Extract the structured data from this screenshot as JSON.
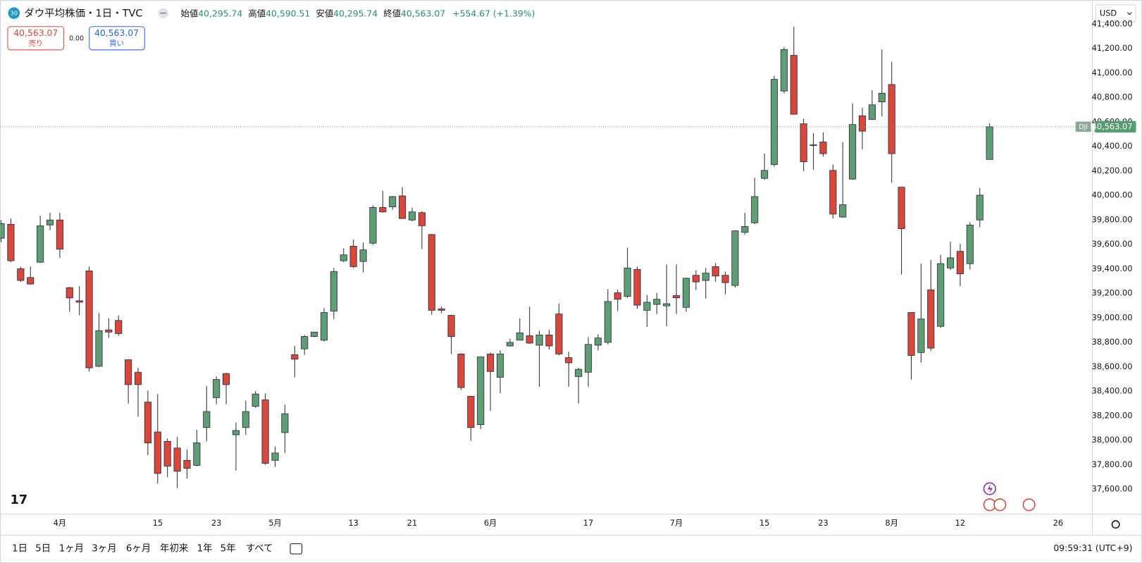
{
  "header": {
    "badge": "30",
    "title": "ダウ平均株価・1日・TVC",
    "ohlc": [
      {
        "label": "始値",
        "value": "40,295.74"
      },
      {
        "label": "高値",
        "value": "40,590.51"
      },
      {
        "label": "安値",
        "value": "40,295.74"
      },
      {
        "label": "終値",
        "value": "40,563.07"
      }
    ],
    "change": "+554.67 (+1.39%)"
  },
  "trade": {
    "sell_price": "40,563.07",
    "sell_label": "売り",
    "spread": "0.00",
    "buy_price": "40,563.07",
    "buy_label": "買い"
  },
  "currency": "USD",
  "ranges": [
    "1日",
    "5日",
    "1ヶ月",
    "3ヶ月",
    "6ヶ月",
    "年初来",
    "1年",
    "5年",
    "すべて"
  ],
  "clock": "09:59:31 (UTC+9)",
  "chart_data": {
    "type": "candlestick",
    "up_color": "#5f9e74",
    "down_color": "#d9473b",
    "categories": [
      null,
      null,
      null,
      null,
      null,
      null,
      "4月",
      null,
      null,
      null,
      null,
      null,
      null,
      null,
      null,
      null,
      "15",
      null,
      null,
      null,
      null,
      null,
      "23",
      null,
      null,
      null,
      null,
      null,
      "5月",
      null,
      null,
      null,
      null,
      null,
      null,
      null,
      "13",
      null,
      null,
      null,
      null,
      null,
      "21",
      null,
      null,
      null,
      null,
      null,
      null,
      null,
      "6月",
      null,
      null,
      null,
      null,
      null,
      null,
      null,
      null,
      null,
      "17",
      null,
      null,
      null,
      null,
      null,
      null,
      null,
      null,
      "7月",
      null,
      null,
      null,
      null,
      null,
      null,
      null,
      null,
      "15",
      null,
      null,
      null,
      null,
      null,
      "23",
      null,
      null,
      null,
      null,
      null,
      null,
      "8月",
      null,
      null,
      null,
      null,
      null,
      null,
      "12",
      null,
      null,
      null,
      null,
      null,
      null,
      null,
      null,
      null,
      "26"
    ],
    "open": [
      39652,
      39766,
      39402,
      39331,
      39456,
      39760,
      39801,
      39248,
      39141,
      39385,
      38605,
      38903,
      38980,
      38659,
      38557,
      38313,
      38069,
      37992,
      37938,
      37837,
      37796,
      38105,
      38349,
      38546,
      38046,
      38105,
      38278,
      38331,
      37837,
      38064,
      38700,
      38748,
      38849,
      38819,
      39057,
      39468,
      39587,
      39462,
      39611,
      39903,
      39908,
      39998,
      39801,
      39861,
      39682,
      39075,
      39022,
      38706,
      38361,
      38129,
      38706,
      38516,
      38772,
      38819,
      38855,
      38778,
      38861,
      39033,
      38676,
      38522,
      38557,
      38778,
      38801,
      39206,
      39177,
      39397,
      39063,
      39111,
      39099,
      39183,
      39087,
      39349,
      39307,
      39420,
      39349,
      39266,
      39700,
      39778,
      40141,
      40254,
      40855,
      41146,
      40587,
      40409,
      40438,
      40206,
      39825,
      40135,
      40652,
      40623,
      40766,
      40908,
      40069,
      39045,
      38718,
      39230,
      38932,
      39409,
      39545,
      39444,
      39801,
      40295.74,
      null,
      null,
      null,
      null,
      null,
      null,
      null
    ],
    "high": [
      39800,
      39813,
      39420,
      39420,
      39837,
      39861,
      39861,
      39254,
      39260,
      39420,
      39040,
      38998,
      39022,
      38659,
      38593,
      38408,
      38378,
      38016,
      38028,
      37927,
      38087,
      38444,
      38522,
      38552,
      38147,
      38325,
      38403,
      38385,
      37950,
      38290,
      38771,
      38861,
      38885,
      39081,
      39409,
      39569,
      39641,
      39617,
      39920,
      40039,
      39998,
      40069,
      39903,
      39873,
      39688,
      39093,
      39027,
      38712,
      38361,
      38682,
      38718,
      38736,
      38831,
      38998,
      39093,
      38897,
      38903,
      39117,
      38724,
      38593,
      38843,
      38867,
      39236,
      39230,
      39575,
      39420,
      39188,
      39206,
      39438,
      39438,
      39331,
      39391,
      39409,
      39450,
      39379,
      39718,
      39861,
      40146,
      40343,
      40980,
      41212,
      41379,
      40629,
      40510,
      40516,
      40254,
      40438,
      40754,
      40718,
      40861,
      41194,
      41093,
      40069,
      39045,
      39444,
      39474,
      39516,
      39623,
      39605,
      39784,
      40063,
      40590.51,
      null,
      null,
      null,
      null,
      null,
      null,
      null
    ],
    "low": [
      39620,
      39456,
      39295,
      39272,
      39450,
      39718,
      39492,
      39051,
      39022,
      38563,
      38599,
      38837,
      38855,
      38301,
      38194,
      37879,
      37647,
      37700,
      37611,
      37688,
      37790,
      37992,
      38295,
      38295,
      37754,
      38046,
      38266,
      37801,
      37784,
      37897,
      38516,
      38700,
      38843,
      38807,
      38992,
      39456,
      39409,
      39373,
      39599,
      39861,
      39885,
      39813,
      39789,
      39563,
      39027,
      39039,
      38706,
      38414,
      37998,
      38093,
      38242,
      38385,
      38766,
      38819,
      38789,
      38438,
      38742,
      38694,
      38438,
      38301,
      38438,
      38736,
      38784,
      39057,
      39165,
      39075,
      38927,
      39033,
      38933,
      39033,
      39051,
      39230,
      39159,
      39295,
      39194,
      39248,
      39682,
      39766,
      40129,
      40236,
      40837,
      40665,
      40200,
      40212,
      40319,
      39813,
      39819,
      40129,
      40379,
      40617,
      40647,
      40105,
      39355,
      38498,
      38635,
      38730,
      38920,
      39391,
      39260,
      39397,
      39742,
      40295.74,
      null,
      null,
      null,
      null,
      null,
      null,
      null
    ],
    "close": [
      39771,
      39468,
      39307,
      39278,
      39754,
      39801,
      39563,
      39164,
      39129,
      38593,
      38897,
      38885,
      38873,
      38456,
      38456,
      37980,
      37730,
      37790,
      37748,
      37772,
      37980,
      38236,
      38498,
      38456,
      38081,
      38236,
      38379,
      37813,
      37897,
      38218,
      38664,
      38849,
      38885,
      39045,
      39379,
      39516,
      39420,
      39557,
      39903,
      39867,
      39992,
      39813,
      39867,
      39754,
      39063,
      39063,
      38849,
      38432,
      38105,
      38682,
      38563,
      38706,
      38801,
      38879,
      38795,
      38861,
      38772,
      38706,
      38634,
      38581,
      38784,
      38837,
      39135,
      39153,
      39409,
      39105,
      39129,
      39153,
      39117,
      39165,
      39325,
      39295,
      39367,
      39343,
      39289,
      39712,
      39748,
      39992,
      40206,
      40950,
      41194,
      40665,
      40277,
      40415,
      40343,
      39849,
      39926,
      40581,
      40527,
      40742,
      40837,
      40343,
      39730,
      38694,
      38992,
      38754,
      39444,
      39492,
      39361,
      39760,
      40004,
      40563.07,
      null,
      null,
      null,
      null,
      null,
      null,
      null
    ],
    "ylim": [
      37397,
      41420
    ],
    "yticks": [
      {
        "value": 37600,
        "label": "37,600.00"
      },
      {
        "value": 37800,
        "label": "37,800.00"
      },
      {
        "value": 38000,
        "label": "38,000.00"
      },
      {
        "value": 38200,
        "label": "38,200.00"
      },
      {
        "value": 38400,
        "label": "38,400.00"
      },
      {
        "value": 38600,
        "label": "38,600.00"
      },
      {
        "value": 38800,
        "label": "38,800.00"
      },
      {
        "value": 39000,
        "label": "39,000.00"
      },
      {
        "value": 39200,
        "label": "39,200.00"
      },
      {
        "value": 39400,
        "label": "39,400.00"
      },
      {
        "value": 39600,
        "label": "39,600.00"
      },
      {
        "value": 39800,
        "label": "39,800.00"
      },
      {
        "value": 40000,
        "label": "40,000.00"
      },
      {
        "value": 40200,
        "label": "40,200.00"
      },
      {
        "value": 40400,
        "label": "40,400.00"
      },
      {
        "value": 40600,
        "label": "40,600.00"
      },
      {
        "value": 40800,
        "label": "40,800.00"
      },
      {
        "value": 41000,
        "label": "41,000.00"
      },
      {
        "value": 41200,
        "label": "41,200.00"
      },
      {
        "value": 41400,
        "label": "41,400.00"
      }
    ],
    "grid": false,
    "price_tag": {
      "symbol": "DJI",
      "value": 40563.07,
      "label": "40,563.07",
      "color": "#5b9b74"
    }
  }
}
